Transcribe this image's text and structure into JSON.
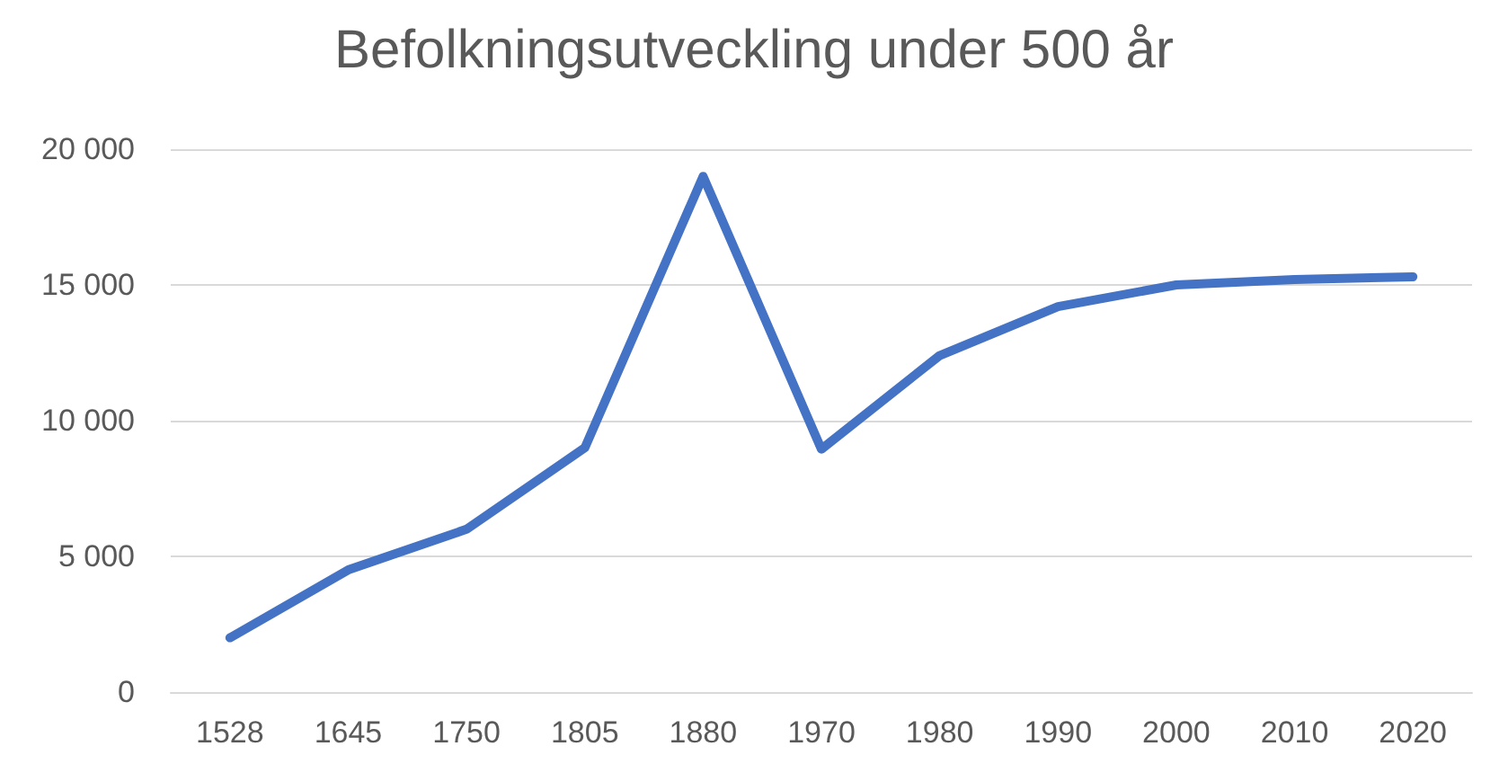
{
  "chart_data": {
    "type": "line",
    "title": "Befolkningsutveckling under 500 år",
    "categories": [
      "1528",
      "1645",
      "1750",
      "1805",
      "1880",
      "1970",
      "1980",
      "1990",
      "2000",
      "2010",
      "2020"
    ],
    "series": [
      {
        "color": "#4472c4",
        "values": [
          2000,
          4500,
          6000,
          9000,
          19000,
          8950,
          12400,
          14200,
          15000,
          15200,
          15300
        ]
      }
    ],
    "ylim": [
      0,
      20000
    ],
    "yticks": [
      {
        "value": 0,
        "label": "0"
      },
      {
        "value": 5000,
        "label": "5 000"
      },
      {
        "value": 10000,
        "label": "10 000"
      },
      {
        "value": 15000,
        "label": "15 000"
      },
      {
        "value": 20000,
        "label": "20 000"
      }
    ],
    "grid": "y",
    "marker": "none",
    "line_style": "solid"
  }
}
